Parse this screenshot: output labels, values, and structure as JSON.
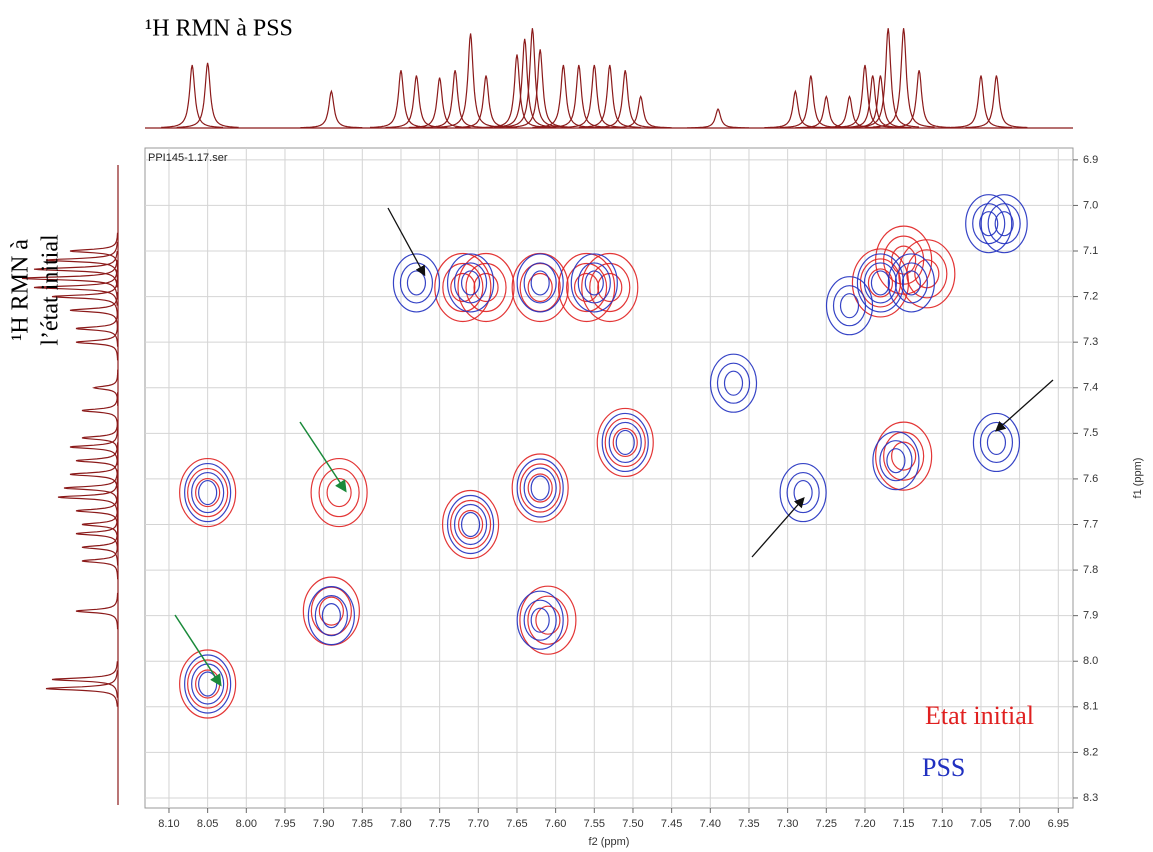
{
  "chart_data": {
    "type": "contour",
    "top_label": "¹H RMN à PSS",
    "left_label": [
      "¹H RMN à",
      "l’état initial"
    ],
    "filename": "PPI145-1.17.ser",
    "xlabel": "f2 (ppm)",
    "ylabel": "f1 (ppm)",
    "xlim": [
      8.131,
      6.931
    ],
    "ylim": [
      6.874,
      8.322
    ],
    "grid": true,
    "xticks": [
      {
        "value": 8.1,
        "label": "8.10"
      },
      8.05,
      {
        "value": 8.0,
        "label": "8.00"
      },
      7.95,
      {
        "value": 7.9,
        "label": "7.90"
      },
      7.85,
      {
        "value": 7.8,
        "label": "7.80"
      },
      7.75,
      {
        "value": 7.7,
        "label": "7.70"
      },
      7.65,
      {
        "value": 7.6,
        "label": "7.60"
      },
      7.55,
      {
        "value": 7.5,
        "label": "7.50"
      },
      7.45,
      {
        "value": 7.4,
        "label": "7.40"
      },
      7.35,
      {
        "value": 7.3,
        "label": "7.30"
      },
      7.25,
      {
        "value": 7.2,
        "label": "7.20"
      },
      7.15,
      {
        "value": 7.1,
        "label": "7.10"
      },
      7.05,
      {
        "value": 7.0,
        "label": "7.00"
      },
      6.95
    ],
    "yticks": [
      6.9,
      {
        "value": 7.0,
        "label": "7.0"
      },
      7.1,
      7.2,
      7.3,
      7.4,
      7.5,
      7.6,
      7.7,
      7.8,
      7.9,
      {
        "value": 8.0,
        "label": "8.0"
      },
      8.1,
      8.2,
      8.3
    ],
    "series": [
      {
        "name": "Etat initial",
        "color": "#e02020",
        "x": [
          8.05,
          7.88,
          8.05,
          7.89,
          7.72,
          7.69,
          7.62,
          7.56,
          7.53,
          7.71,
          7.62,
          7.51,
          7.61,
          7.15,
          7.18,
          7.15,
          7.12
        ],
        "y": [
          7.63,
          7.63,
          8.05,
          7.89,
          7.18,
          7.18,
          7.18,
          7.18,
          7.18,
          7.7,
          7.62,
          7.52,
          7.91,
          7.55,
          7.17,
          7.12,
          7.15
        ]
      },
      {
        "name": "PSS",
        "color": "#2030c0",
        "x": [
          8.05,
          8.05,
          7.89,
          7.78,
          7.71,
          7.62,
          7.55,
          7.51,
          7.71,
          7.62,
          7.62,
          7.28,
          7.16,
          7.04,
          7.02,
          7.03,
          7.37,
          7.18,
          7.14,
          7.22
        ],
        "y": [
          7.63,
          8.05,
          7.9,
          7.17,
          7.17,
          7.17,
          7.17,
          7.52,
          7.7,
          7.62,
          7.91,
          7.63,
          7.56,
          7.04,
          7.04,
          7.52,
          7.39,
          7.17,
          7.17,
          7.22
        ]
      }
    ],
    "top_spectrum": {
      "x": [
        8.07,
        8.05,
        7.89,
        7.8,
        7.78,
        7.75,
        7.73,
        7.71,
        7.69,
        7.65,
        7.64,
        7.63,
        7.62,
        7.59,
        7.57,
        7.55,
        7.53,
        7.51,
        7.49,
        7.39,
        7.29,
        7.27,
        7.25,
        7.22,
        7.2,
        7.19,
        7.18,
        7.17,
        7.15,
        7.13,
        7.05,
        7.03
      ],
      "values": [
        0.6,
        0.62,
        0.35,
        0.55,
        0.5,
        0.48,
        0.55,
        0.9,
        0.5,
        0.7,
        0.85,
        0.95,
        0.75,
        0.6,
        0.6,
        0.6,
        0.6,
        0.55,
        0.3,
        0.18,
        0.35,
        0.5,
        0.3,
        0.3,
        0.6,
        0.5,
        0.5,
        0.95,
        0.95,
        0.55,
        0.5,
        0.5
      ]
    },
    "left_spectrum": {
      "y": [
        8.06,
        8.04,
        7.89,
        7.78,
        7.75,
        7.72,
        7.7,
        7.67,
        7.64,
        7.62,
        7.59,
        7.56,
        7.53,
        7.51,
        7.45,
        7.4,
        7.3,
        7.27,
        7.23,
        7.2,
        7.18,
        7.16,
        7.14,
        7.12,
        7.1
      ],
      "values": [
        0.6,
        0.55,
        0.35,
        0.3,
        0.3,
        0.35,
        0.3,
        0.35,
        0.5,
        0.45,
        0.4,
        0.35,
        0.4,
        0.3,
        0.3,
        0.2,
        0.35,
        0.35,
        0.4,
        0.55,
        0.7,
        0.8,
        0.7,
        0.6,
        0.4
      ]
    }
  }
}
